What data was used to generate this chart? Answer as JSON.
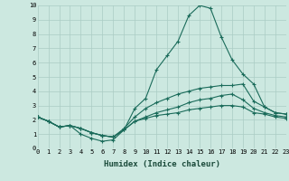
{
  "bg_color": "#cce8e0",
  "grid_color": "#aaccC4",
  "line_color": "#1a6b5a",
  "xlabel": "Humidex (Indice chaleur)",
  "xlim": [
    0,
    23
  ],
  "ylim": [
    0,
    10
  ],
  "curve1_x": [
    0,
    1,
    2,
    3,
    4,
    5,
    6,
    7,
    8,
    9,
    10,
    11,
    12,
    13,
    14,
    15,
    16,
    17,
    18,
    19,
    20,
    21,
    22,
    23
  ],
  "curve1_y": [
    2.2,
    1.9,
    1.5,
    1.6,
    1.0,
    0.7,
    0.5,
    0.6,
    1.3,
    2.8,
    3.5,
    5.5,
    6.5,
    7.5,
    9.3,
    10.0,
    9.8,
    7.8,
    6.2,
    5.2,
    4.5,
    2.9,
    2.5,
    2.4
  ],
  "curve2_x": [
    0,
    1,
    2,
    3,
    4,
    5,
    6,
    7,
    8,
    9,
    10,
    11,
    12,
    13,
    14,
    15,
    16,
    17,
    18,
    19,
    20,
    21,
    22,
    23
  ],
  "curve2_y": [
    2.2,
    1.9,
    1.5,
    1.6,
    1.4,
    1.1,
    0.9,
    0.8,
    1.4,
    2.2,
    2.8,
    3.2,
    3.5,
    3.8,
    4.0,
    4.2,
    4.3,
    4.4,
    4.4,
    4.5,
    3.3,
    2.9,
    2.5,
    2.4
  ],
  "curve3_x": [
    0,
    1,
    2,
    3,
    4,
    5,
    6,
    7,
    8,
    9,
    10,
    11,
    12,
    13,
    14,
    15,
    16,
    17,
    18,
    19,
    20,
    21,
    22,
    23
  ],
  "curve3_y": [
    2.2,
    1.9,
    1.5,
    1.6,
    1.4,
    1.1,
    0.9,
    0.8,
    1.3,
    1.9,
    2.2,
    2.5,
    2.7,
    2.9,
    3.2,
    3.4,
    3.5,
    3.7,
    3.8,
    3.4,
    2.8,
    2.5,
    2.3,
    2.2
  ],
  "curve4_x": [
    0,
    1,
    2,
    3,
    4,
    5,
    6,
    7,
    8,
    9,
    10,
    11,
    12,
    13,
    14,
    15,
    16,
    17,
    18,
    19,
    20,
    21,
    22,
    23
  ],
  "curve4_y": [
    2.2,
    1.9,
    1.5,
    1.6,
    1.4,
    1.1,
    0.9,
    0.8,
    1.3,
    1.9,
    2.1,
    2.3,
    2.4,
    2.5,
    2.7,
    2.8,
    2.9,
    3.0,
    3.0,
    2.9,
    2.5,
    2.4,
    2.2,
    2.1
  ],
  "tick_fontsize": 5.0,
  "xlabel_fontsize": 6.5,
  "marker_size": 3,
  "linewidth": 0.8
}
